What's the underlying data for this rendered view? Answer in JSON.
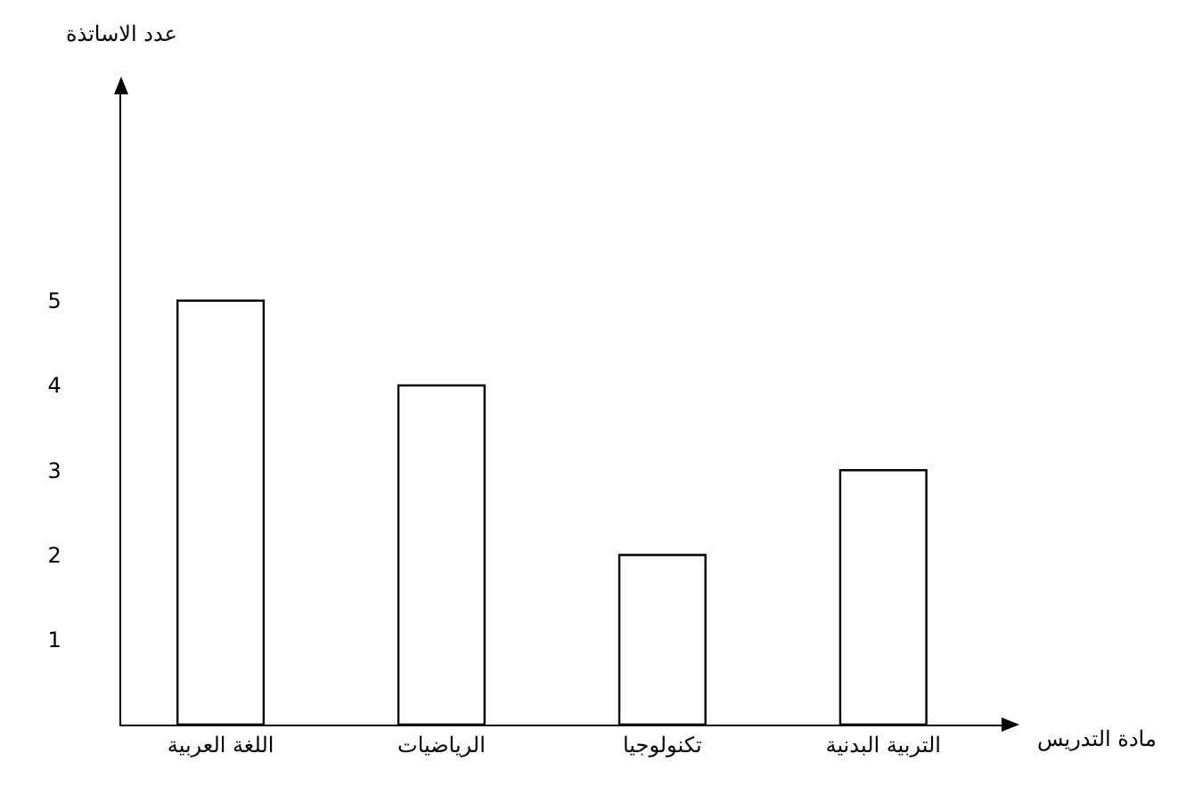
{
  "chart_data": {
    "type": "bar",
    "xlabel": "مادة التدريس",
    "ylabel": "عدد الاساتذة",
    "categories": [
      "اللغة العربية",
      "الرياضيات",
      "تكنولوجيا",
      "التربية البدنية"
    ],
    "values": [
      5,
      4,
      2,
      3
    ],
    "color": "#ffffff",
    "ylim": [
      0,
      7.6
    ],
    "yticks": [
      1,
      2,
      3,
      4,
      5
    ],
    "grid": false
  }
}
